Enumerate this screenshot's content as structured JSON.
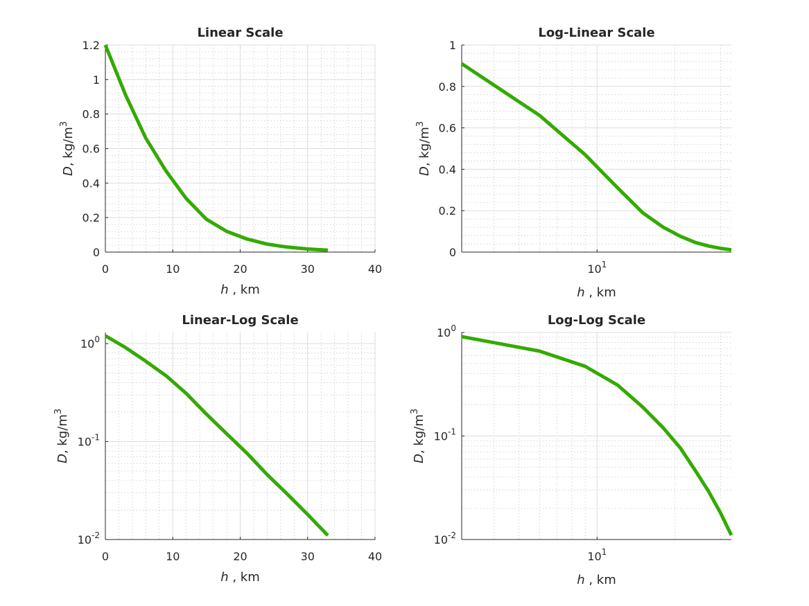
{
  "chart_data": [
    {
      "type": "line",
      "title": "Linear Scale",
      "xscale": "linear",
      "yscale": "linear",
      "xlim": [
        0,
        40
      ],
      "ylim": [
        0,
        1.2
      ],
      "xticks": [
        0,
        10,
        20,
        30,
        40
      ],
      "xticklabels": [
        "0",
        "10",
        "20",
        "30",
        "40"
      ],
      "yticks": [
        0,
        0.2,
        0.4,
        0.6,
        0.8,
        1,
        1.2
      ],
      "yticklabels": [
        "0",
        "0.2",
        "0.4",
        "0.6",
        "0.8",
        "1",
        "1.2"
      ],
      "xlabel": {
        "var": "h",
        "text": " , km"
      },
      "ylabel": {
        "var": "D",
        "text": ", kg/m",
        "sup": "3"
      },
      "grid": true,
      "minor_grid": true,
      "x": [
        0,
        3,
        6,
        9,
        12,
        15,
        18,
        21,
        24,
        27,
        30,
        33
      ],
      "y": [
        1.2,
        0.91,
        0.66,
        0.47,
        0.31,
        0.19,
        0.12,
        0.076,
        0.046,
        0.029,
        0.018,
        0.011
      ]
    },
    {
      "type": "line",
      "title": "Log-Linear Scale",
      "xscale": "log",
      "yscale": "linear",
      "xlim": [
        3,
        33
      ],
      "ylim": [
        0,
        1
      ],
      "xticks": [
        10
      ],
      "xticklabels": [
        {
          "base": "10",
          "exp": "1"
        }
      ],
      "yticks": [
        0,
        0.2,
        0.4,
        0.6,
        0.8,
        1
      ],
      "yticklabels": [
        "0",
        "0.2",
        "0.4",
        "0.6",
        "0.8",
        "1"
      ],
      "xlabel": {
        "var": "h",
        "text": " , km"
      },
      "ylabel": {
        "var": "D",
        "text": ", kg/m",
        "sup": "3"
      },
      "grid": true,
      "minor_grid": true,
      "x": [
        3,
        6,
        9,
        12,
        15,
        18,
        21,
        24,
        27,
        30,
        33
      ],
      "y": [
        0.91,
        0.66,
        0.47,
        0.31,
        0.19,
        0.12,
        0.076,
        0.046,
        0.029,
        0.018,
        0.011
      ]
    },
    {
      "type": "line",
      "title": "Linear-Log Scale",
      "xscale": "linear",
      "yscale": "log",
      "xlim": [
        0,
        40
      ],
      "ylim": [
        0.01,
        1.3
      ],
      "xticks": [
        0,
        10,
        20,
        30,
        40
      ],
      "xticklabels": [
        "0",
        "10",
        "20",
        "30",
        "40"
      ],
      "yticks": [
        0.01,
        0.1,
        1
      ],
      "yticklabels": [
        {
          "base": "10",
          "exp": "-2"
        },
        {
          "base": "10",
          "exp": "-1"
        },
        {
          "base": "10",
          "exp": "0"
        }
      ],
      "xlabel": {
        "var": "h",
        "text": " , km"
      },
      "ylabel": {
        "var": "D",
        "text": ", kg/m",
        "sup": "3"
      },
      "grid": true,
      "minor_grid": true,
      "x": [
        0,
        3,
        6,
        9,
        12,
        15,
        18,
        21,
        24,
        27,
        30,
        33
      ],
      "y": [
        1.2,
        0.91,
        0.66,
        0.47,
        0.31,
        0.19,
        0.12,
        0.076,
        0.046,
        0.029,
        0.018,
        0.011
      ]
    },
    {
      "type": "line",
      "title": "Log-Log Scale",
      "xscale": "log",
      "yscale": "log",
      "xlim": [
        3,
        33
      ],
      "ylim": [
        0.01,
        1
      ],
      "xticks": [
        10
      ],
      "xticklabels": [
        {
          "base": "10",
          "exp": "1"
        }
      ],
      "yticks": [
        0.01,
        0.1,
        1
      ],
      "yticklabels": [
        {
          "base": "10",
          "exp": "-2"
        },
        {
          "base": "10",
          "exp": "-1"
        },
        {
          "base": "10",
          "exp": "0"
        }
      ],
      "xlabel": {
        "var": "h",
        "text": " , km"
      },
      "ylabel": {
        "var": "D",
        "text": ", kg/m",
        "sup": "3"
      },
      "grid": true,
      "minor_grid": true,
      "x": [
        3,
        6,
        9,
        12,
        15,
        18,
        21,
        24,
        27,
        30,
        33
      ],
      "y": [
        0.91,
        0.66,
        0.47,
        0.31,
        0.19,
        0.12,
        0.076,
        0.046,
        0.029,
        0.018,
        0.011
      ]
    }
  ],
  "colors": {
    "line": "#33aa00",
    "axis": "#262626",
    "grid": "#dcdcdc",
    "minor_grid": "#c8c8c8",
    "background": "#ffffff"
  }
}
